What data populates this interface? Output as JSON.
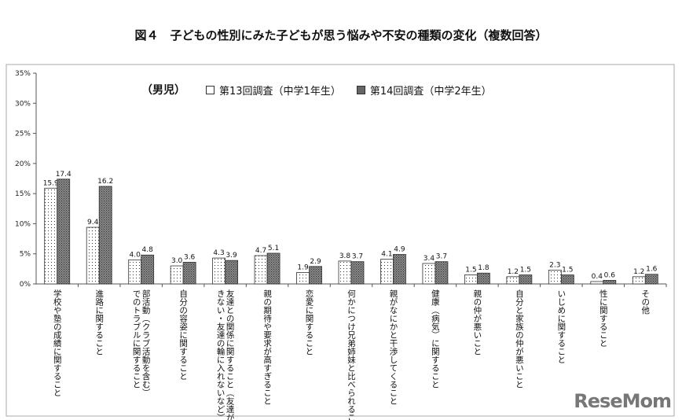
{
  "title": "図４　子どもの性別にみた子どもが思う悩みや不安の種類の変化（複数回答）",
  "logo": "ReseMom",
  "chart_data": {
    "type": "bar",
    "title": "図４　子どもの性別にみた子どもが思う悩みや不安の種類の変化（複数回答）",
    "group_label": "（男児）",
    "ylim": [
      0,
      35
    ],
    "yticks": [
      "0%",
      "5%",
      "10%",
      "15%",
      "20%",
      "25%",
      "30%",
      "35%"
    ],
    "grid": false,
    "legend": "top-left",
    "categories": [
      "学校や塾の成績に関すること",
      "進路に関すること",
      "部活動（クラブ活動を含む）でのトラブルに関すること",
      "自分の容姿に関すること",
      "友達との関係に関すること（友達ができない・友達の輪に入れないなど）",
      "親の期待や要求が高すぎること",
      "恋愛に関すること",
      "何かにつけ兄弟姉妹と比べられること",
      "親がなにかと干渉してくること",
      "健康（病気）に関すること",
      "親の仲が悪いこと",
      "自分と家族の仲が悪いこと",
      "いじめに関すること",
      "性に関すること",
      "その他"
    ],
    "series": [
      {
        "name": "第13回調査（中学1年生）",
        "color": "#ffffff",
        "pattern": "dots",
        "values": [
          15.9,
          9.4,
          4.0,
          3.0,
          4.3,
          4.7,
          1.9,
          3.8,
          4.1,
          3.4,
          1.5,
          1.2,
          2.3,
          0.4,
          1.2
        ]
      },
      {
        "name": "第14回調査（中学2年生）",
        "color": "#777777",
        "pattern": "crosshatch",
        "values": [
          17.4,
          16.2,
          4.8,
          3.6,
          3.9,
          5.1,
          2.9,
          3.7,
          4.9,
          3.7,
          1.8,
          1.5,
          1.5,
          0.6,
          1.6
        ]
      }
    ]
  }
}
